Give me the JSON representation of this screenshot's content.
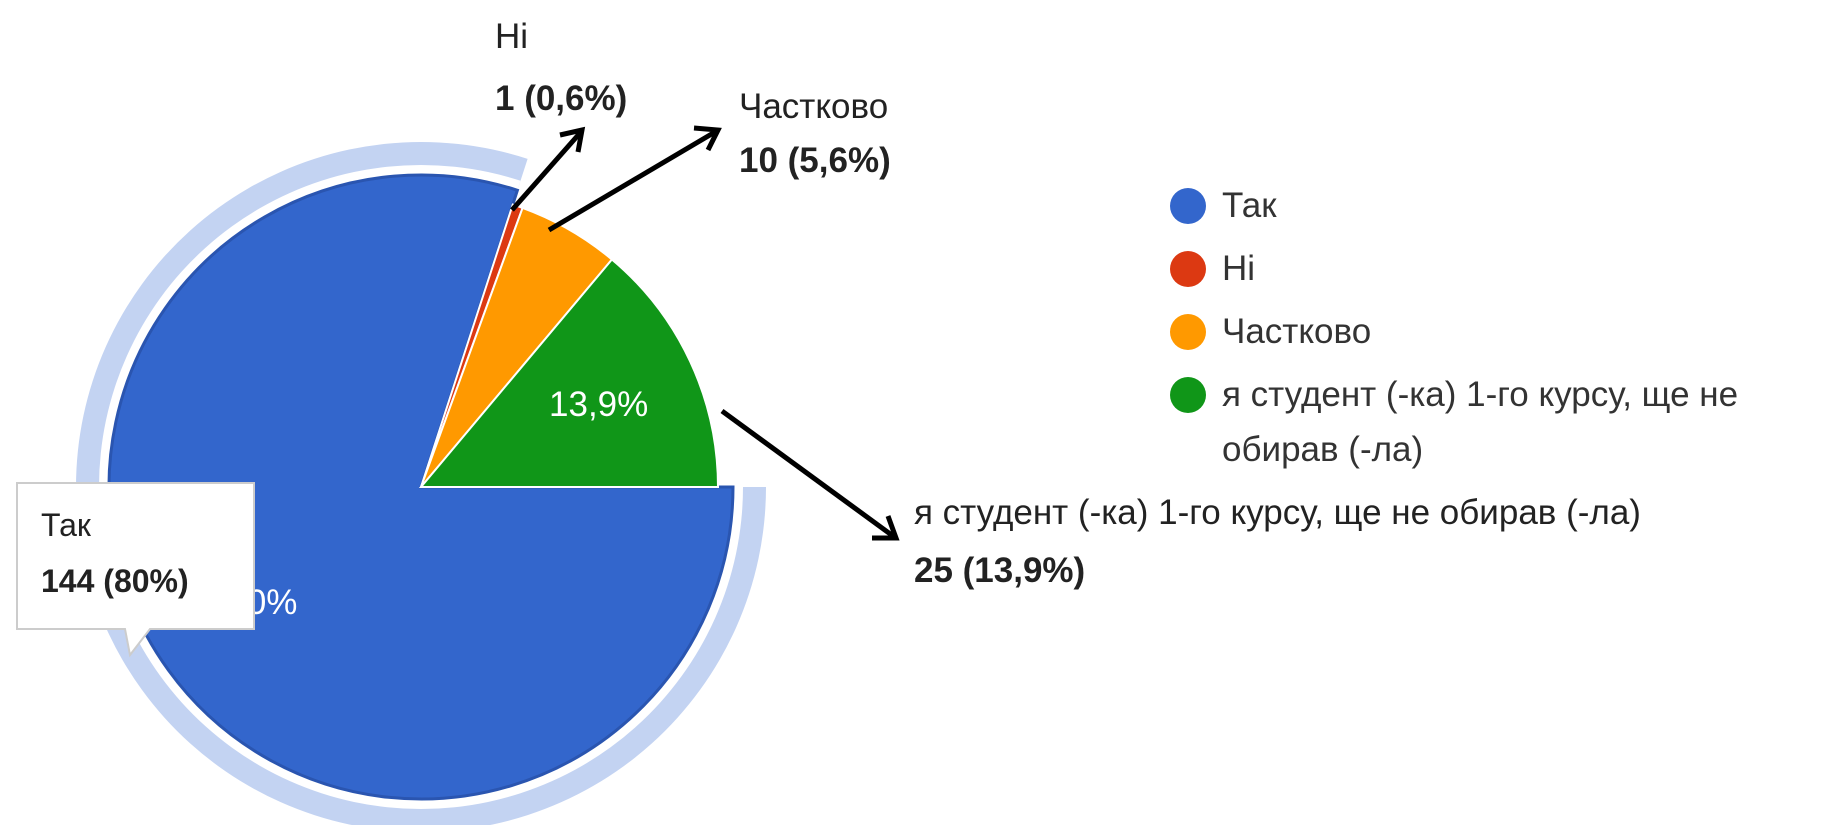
{
  "chart_data": {
    "type": "pie",
    "categories": [
      "Так",
      "Ні",
      "Частково",
      "я студент (-ка) 1-го курсу, ще не обирав (-ла)"
    ],
    "values": [
      144,
      1,
      10,
      25
    ],
    "value_labels": [
      "144 (80%)",
      "1 (0,6%)",
      "10 (5,6%)",
      "25 (13,9%)"
    ],
    "slice_labels": [
      "80%",
      null,
      null,
      "13,9%"
    ],
    "colors": [
      "#3366cc",
      "#dc3912",
      "#ff9900",
      "#109618"
    ],
    "legend": "right"
  }
}
